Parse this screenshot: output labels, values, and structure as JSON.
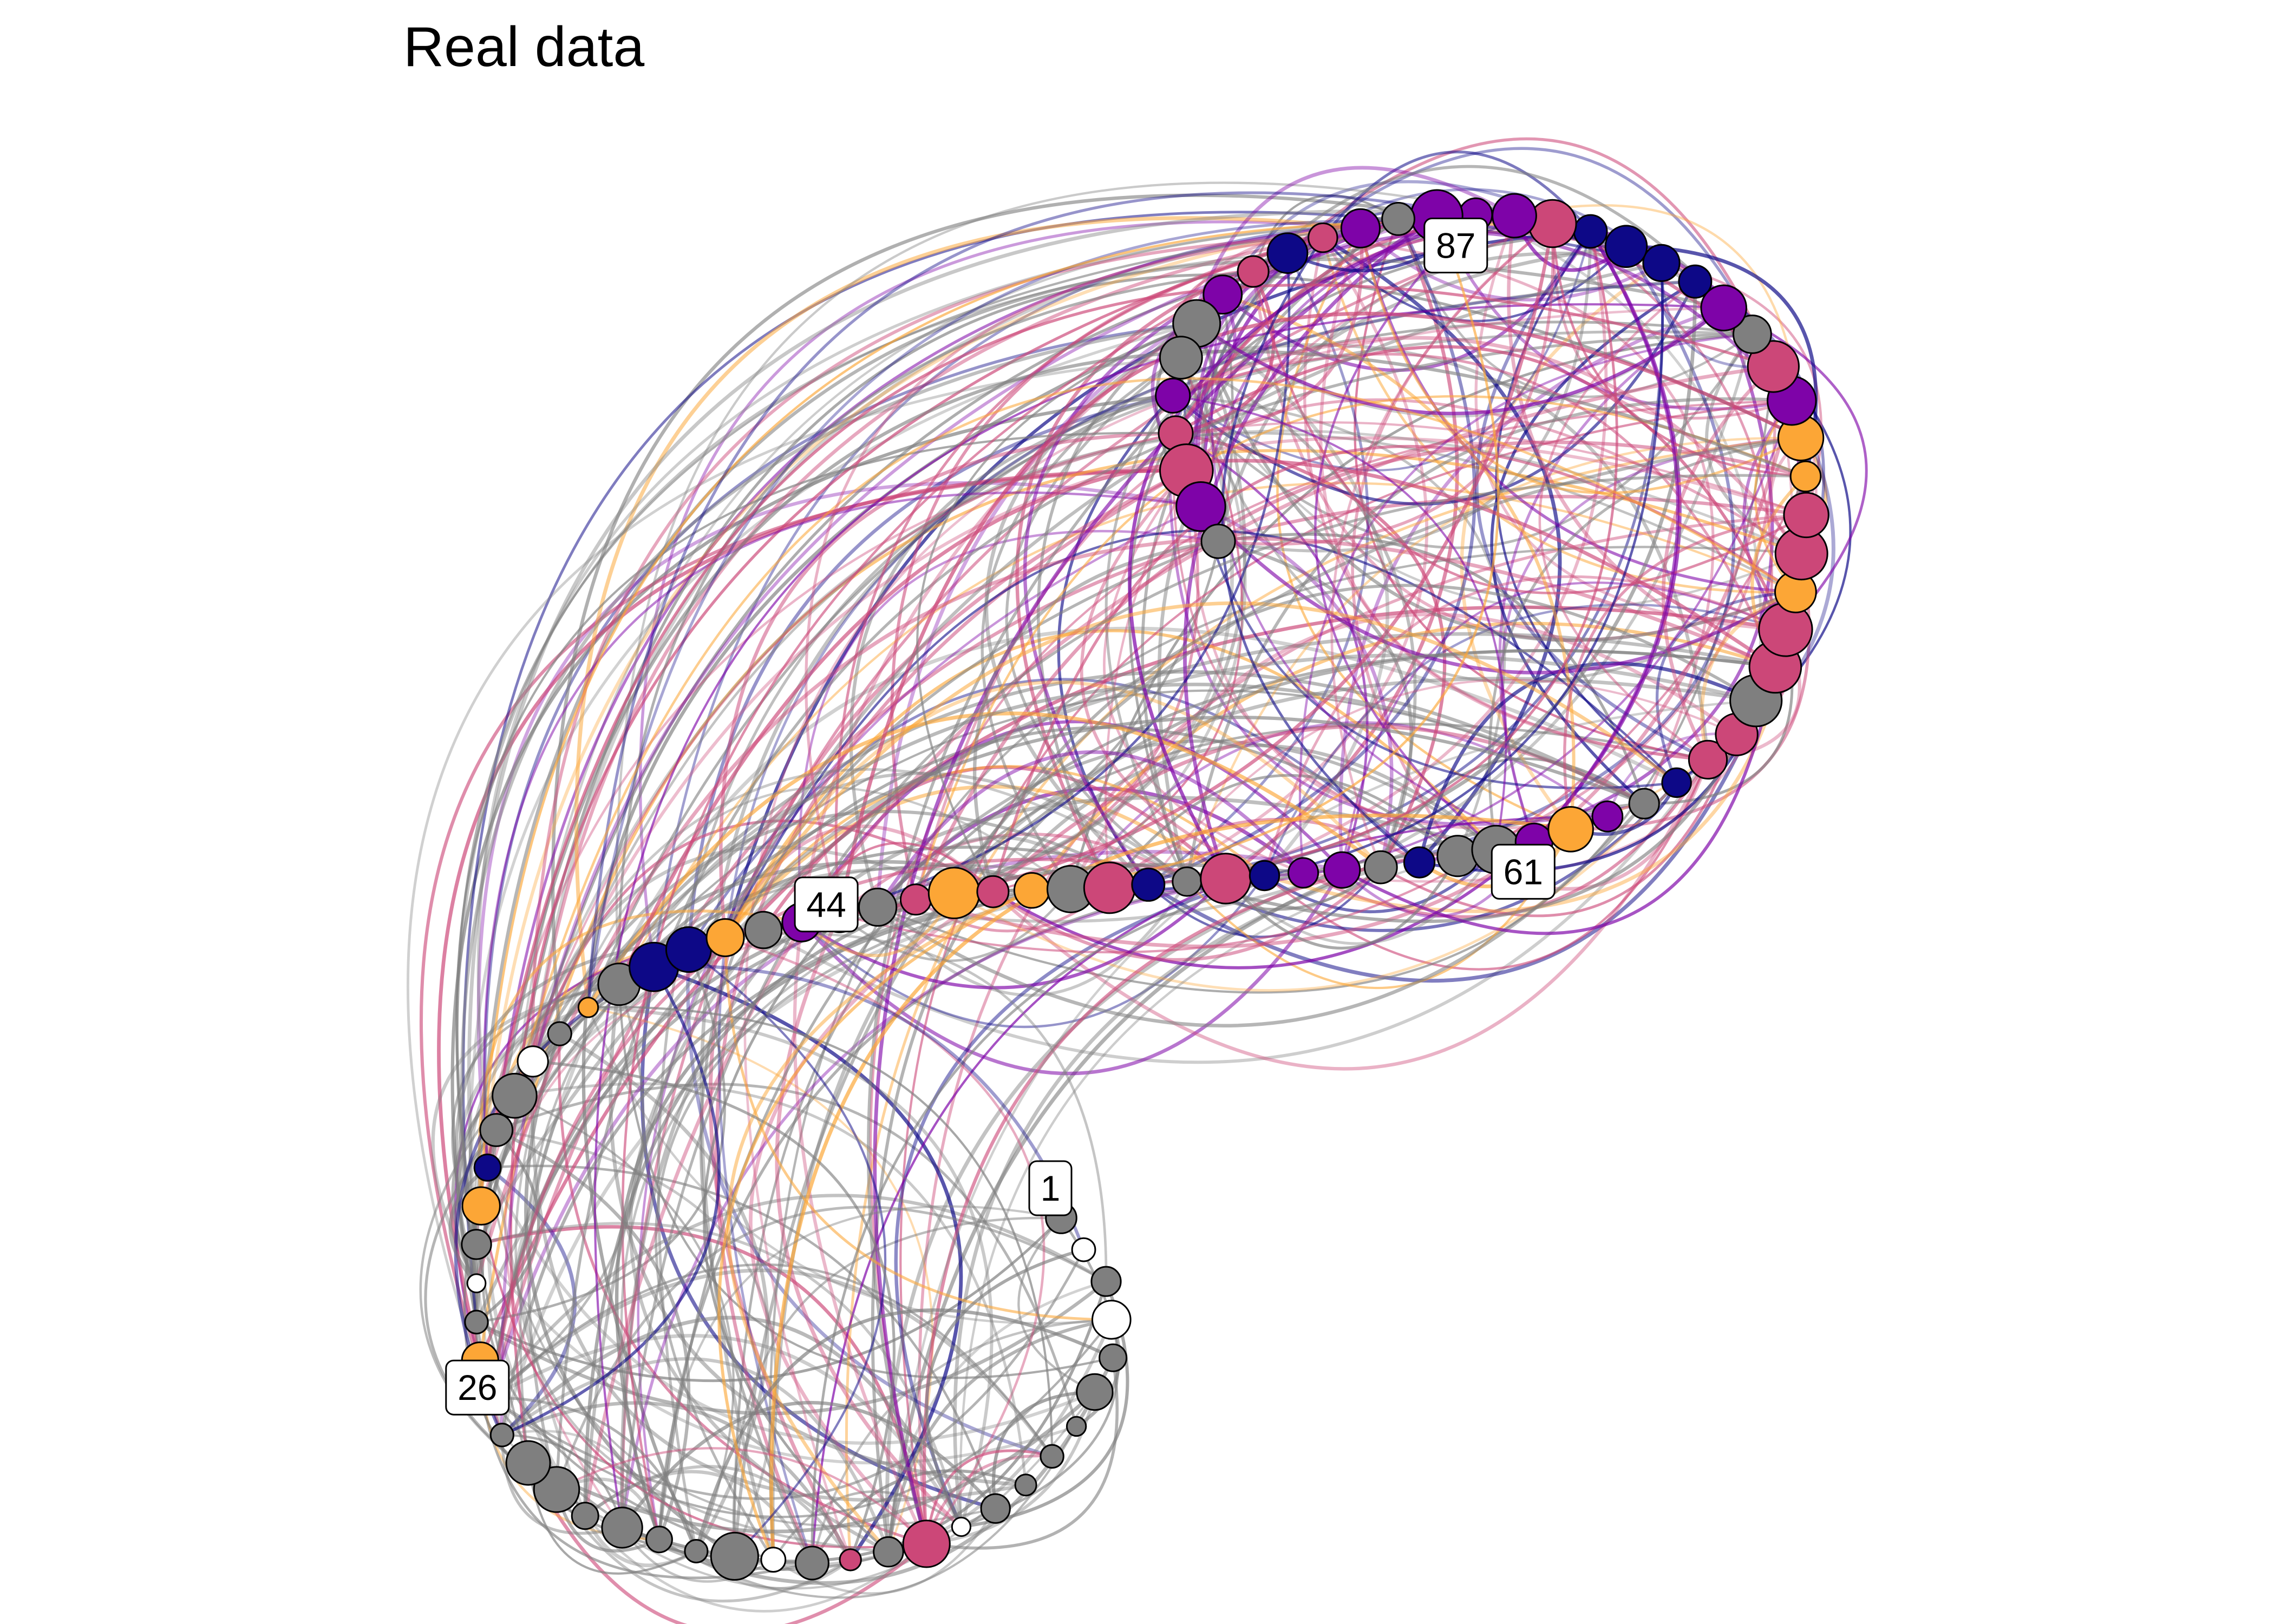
{
  "title": "Real data",
  "colors": {
    "navy": "#0d0887",
    "purple": "#7e03a8",
    "pink": "#cc4778",
    "orange": "#fca636",
    "gray": "#7f7f7f",
    "white": "#ffffff"
  },
  "node_count": 100,
  "labels": [
    {
      "node": 1,
      "text": "1"
    },
    {
      "node": 26,
      "text": "26"
    },
    {
      "node": 44,
      "text": "44"
    },
    {
      "node": 61,
      "text": "61"
    },
    {
      "node": 87,
      "text": "87"
    }
  ]
}
